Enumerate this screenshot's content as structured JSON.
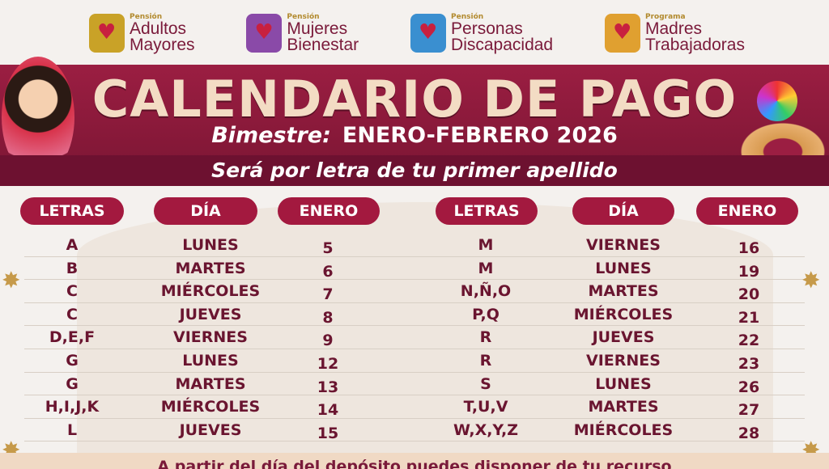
{
  "logos": [
    {
      "pre": "Pensión",
      "line1": "Adultos",
      "line2": "Mayores",
      "color": "#c9a227"
    },
    {
      "pre": "Pensión",
      "line1": "Mujeres",
      "line2": "Bienestar",
      "color": "#8a4aa8"
    },
    {
      "pre": "Pensión",
      "line1": "Personas",
      "line2": "Discapacidad",
      "color": "#3a8fd0"
    },
    {
      "pre": "Programa",
      "line1": "Madres",
      "line2": "Trabajadoras",
      "color": "#e0a030"
    }
  ],
  "title": "CALENDARIO DE PAGO",
  "bimestre_label": "Bimestre:",
  "bimestre_value": "ENERO-FEBRERO 2026",
  "subtitle": "Será por letra de tu primer apellido",
  "headers": [
    "LETRAS",
    "DÍA",
    "ENERO",
    "LETRAS",
    "DÍA",
    "ENERO"
  ],
  "left": [
    [
      "A",
      "LUNES",
      "5"
    ],
    [
      "B",
      "MARTES",
      "6"
    ],
    [
      "C",
      "MIÉRCOLES",
      "7"
    ],
    [
      "C",
      "JUEVES",
      "8"
    ],
    [
      "D,E,F",
      "VIERNES",
      "9"
    ],
    [
      "G",
      "LUNES",
      "12"
    ],
    [
      "G",
      "MARTES",
      "13"
    ],
    [
      "H,I,J,K",
      "MIÉRCOLES",
      "14"
    ],
    [
      "L",
      "JUEVES",
      "15"
    ]
  ],
  "right": [
    [
      "M",
      "VIERNES",
      "16"
    ],
    [
      "M",
      "LUNES",
      "19"
    ],
    [
      "N,Ñ,O",
      "MARTES",
      "20"
    ],
    [
      "P,Q",
      "MIÉRCOLES",
      "21"
    ],
    [
      "R",
      "JUEVES",
      "22"
    ],
    [
      "R",
      "VIERNES",
      "23"
    ],
    [
      "S",
      "LUNES",
      "26"
    ],
    [
      "T,U,V",
      "MARTES",
      "27"
    ],
    [
      "W,X,Y,Z",
      "MIÉRCOLES",
      "28"
    ]
  ],
  "footer": "A partir del día del depósito puedes disponer de tu recurso",
  "colors": {
    "banner": "#9b1e42",
    "header_pill": "#a3193f",
    "text": "#6a1530"
  }
}
